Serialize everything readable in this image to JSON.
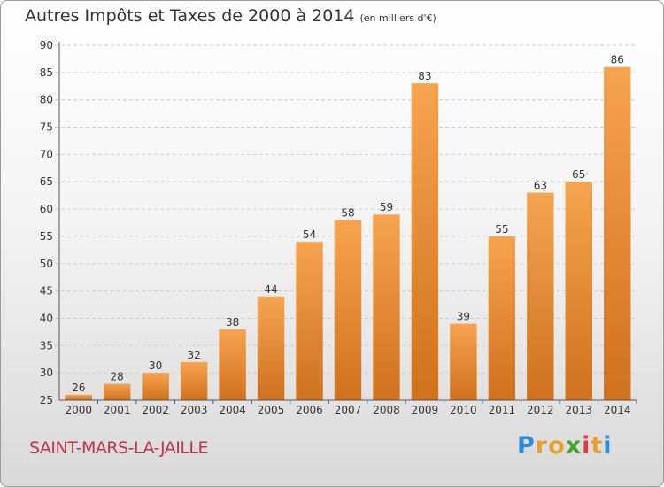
{
  "chart_data": {
    "type": "bar",
    "title": "Autres Impôts et Taxes de 2000 à 2014",
    "subtitle": "(en milliers d'€)",
    "categories": [
      "2000",
      "2001",
      "2002",
      "2003",
      "2004",
      "2005",
      "2006",
      "2007",
      "2008",
      "2009",
      "2010",
      "2011",
      "2012",
      "2013",
      "2014"
    ],
    "values": [
      26,
      28,
      30,
      32,
      38,
      44,
      54,
      58,
      59,
      83,
      39,
      55,
      63,
      65,
      86
    ],
    "ylim": [
      25,
      90
    ],
    "yticks": [
      25,
      30,
      35,
      40,
      45,
      50,
      55,
      60,
      65,
      70,
      75,
      80,
      85,
      90
    ],
    "grid": true,
    "bar_color": "#f0a050"
  },
  "commune": "SAINT-MARS-LA-JAILLE",
  "logo": {
    "letters": [
      "P",
      "r",
      "o",
      "x",
      "i",
      "t",
      "i"
    ],
    "colors": [
      "#2a8fd6",
      "#e8a02a",
      "#e8a02a",
      "#49a12e",
      "#e03c3c",
      "#e8a02a",
      "#2a8fd6"
    ]
  }
}
